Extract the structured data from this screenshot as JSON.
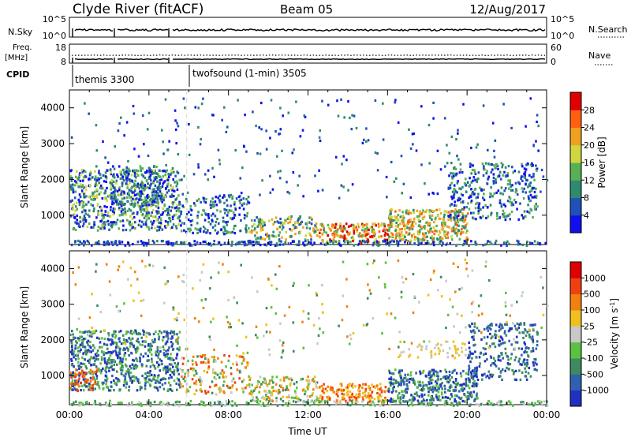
{
  "header": {
    "station": "Clyde River (fitACF)",
    "beam": "Beam 05",
    "date": "12/Aug/2017"
  },
  "summary_panels": {
    "nsky_label": "N.Sky",
    "nsky_ticks": [
      "10^5",
      "10^0"
    ],
    "nsearch_label": "N.Search",
    "nsearch_ticks": [
      "10^5",
      "10^0"
    ],
    "freq_label_1": "Freq.",
    "freq_label_2": "[MHz]",
    "freq_ticks": [
      "18",
      "8"
    ],
    "nave_label": "Nave",
    "nave_ticks": [
      "60",
      "0"
    ],
    "cpid_label": "CPID",
    "modes": [
      {
        "name": "themis 3300",
        "start_hour": 0
      },
      {
        "name": "twofsound (1-min) 3505",
        "start_hour": 5.9
      }
    ]
  },
  "chart_data": [
    {
      "type": "heatmap",
      "title": "",
      "ylabel": "Slant Range [km]",
      "xlabel": "",
      "xlim": [
        0,
        24
      ],
      "ylim": [
        180,
        4500
      ],
      "x_ticks": [
        0,
        4,
        8,
        12,
        16,
        20,
        24
      ],
      "y_ticks": [
        1000,
        2000,
        3000,
        4000
      ],
      "colorbar": {
        "label": "Power [dB]",
        "tick_labels": [
          "4",
          "8",
          "12",
          "16",
          "20",
          "24",
          "28"
        ],
        "colors": [
          "#1010ee",
          "#2050b8",
          "#2e8a6e",
          "#58b055",
          "#cfd640",
          "#f0a020",
          "#ff6010",
          "#e00000"
        ]
      },
      "scatter_regions": [
        {
          "t": [
            0.0,
            5.5
          ],
          "r": [
            600,
            2300
          ],
          "level": [
            0,
            4
          ],
          "density": 0.55
        },
        {
          "t": [
            2.0,
            4.5
          ],
          "r": [
            1300,
            2400
          ],
          "level": [
            0,
            3
          ],
          "density": 0.4
        },
        {
          "t": [
            5.5,
            9.0
          ],
          "r": [
            500,
            1600
          ],
          "level": [
            0,
            3
          ],
          "density": 0.35
        },
        {
          "t": [
            9.0,
            12.5
          ],
          "r": [
            350,
            1000
          ],
          "level": [
            1,
            5
          ],
          "density": 0.45
        },
        {
          "t": [
            12.5,
            16.0
          ],
          "r": [
            250,
            800
          ],
          "level": [
            3,
            7
          ],
          "density": 0.75
        },
        {
          "t": [
            16.0,
            20.0
          ],
          "r": [
            300,
            1200
          ],
          "level": [
            2,
            6
          ],
          "density": 0.7
        },
        {
          "t": [
            19.0,
            23.5
          ],
          "r": [
            900,
            2500
          ],
          "level": [
            0,
            3
          ],
          "density": 0.35
        },
        {
          "t": [
            0.0,
            24.0
          ],
          "r": [
            180,
            320
          ],
          "level": [
            0,
            2
          ],
          "density": 0.6
        },
        {
          "t": [
            0.0,
            24.0
          ],
          "r": [
            1500,
            4300
          ],
          "level": [
            0,
            2
          ],
          "density": 0.03
        }
      ]
    },
    {
      "type": "heatmap",
      "title": "",
      "ylabel": "Slant Range [km]",
      "xlabel": "Time UT",
      "xlim": [
        0,
        24
      ],
      "ylim": [
        180,
        4500
      ],
      "x_ticks": [
        0,
        4,
        8,
        12,
        16,
        20,
        24
      ],
      "x_tick_labels": [
        "00:00",
        "04:00",
        "08:00",
        "12:00",
        "16:00",
        "20:00",
        "00:00"
      ],
      "y_ticks": [
        1000,
        2000,
        3000,
        4000
      ],
      "colorbar": {
        "label": "Velocity [m s^-1]",
        "tick_labels": [
          "1000",
          "500",
          "100",
          "25",
          "-25",
          "-100",
          "-500",
          "-1000"
        ],
        "colors": [
          "#2030c0",
          "#3060b0",
          "#3e8a60",
          "#5cc040",
          "#c8c8c8",
          "#f0c020",
          "#f08010",
          "#f04010",
          "#e00000"
        ]
      },
      "scatter_regions": [
        {
          "t": [
            0.0,
            5.5
          ],
          "r": [
            600,
            2300
          ],
          "level": [
            0,
            3
          ],
          "density": 0.55
        },
        {
          "t": [
            0.0,
            1.5
          ],
          "r": [
            600,
            1200
          ],
          "level": [
            6,
            7
          ],
          "density": 0.4
        },
        {
          "t": [
            5.5,
            9.0
          ],
          "r": [
            500,
            1600
          ],
          "level": [
            2,
            7
          ],
          "density": 0.3
        },
        {
          "t": [
            9.0,
            12.5
          ],
          "r": [
            300,
            1000
          ],
          "level": [
            2,
            6
          ],
          "density": 0.45
        },
        {
          "t": [
            12.5,
            16.0
          ],
          "r": [
            250,
            800
          ],
          "level": [
            5,
            7
          ],
          "density": 0.6
        },
        {
          "t": [
            16.0,
            20.5
          ],
          "r": [
            300,
            1200
          ],
          "level": [
            0,
            3
          ],
          "density": 0.65
        },
        {
          "t": [
            16.5,
            20.0
          ],
          "r": [
            1500,
            2000
          ],
          "level": [
            4,
            5
          ],
          "density": 0.2
        },
        {
          "t": [
            20.0,
            23.5
          ],
          "r": [
            900,
            2500
          ],
          "level": [
            0,
            2
          ],
          "density": 0.35
        },
        {
          "t": [
            0.0,
            24.0
          ],
          "r": [
            180,
            320
          ],
          "level": [
            2,
            4
          ],
          "density": 0.55
        },
        {
          "t": [
            0.0,
            24.0
          ],
          "r": [
            1500,
            4300
          ],
          "level": [
            2,
            6
          ],
          "density": 0.03
        }
      ]
    }
  ]
}
